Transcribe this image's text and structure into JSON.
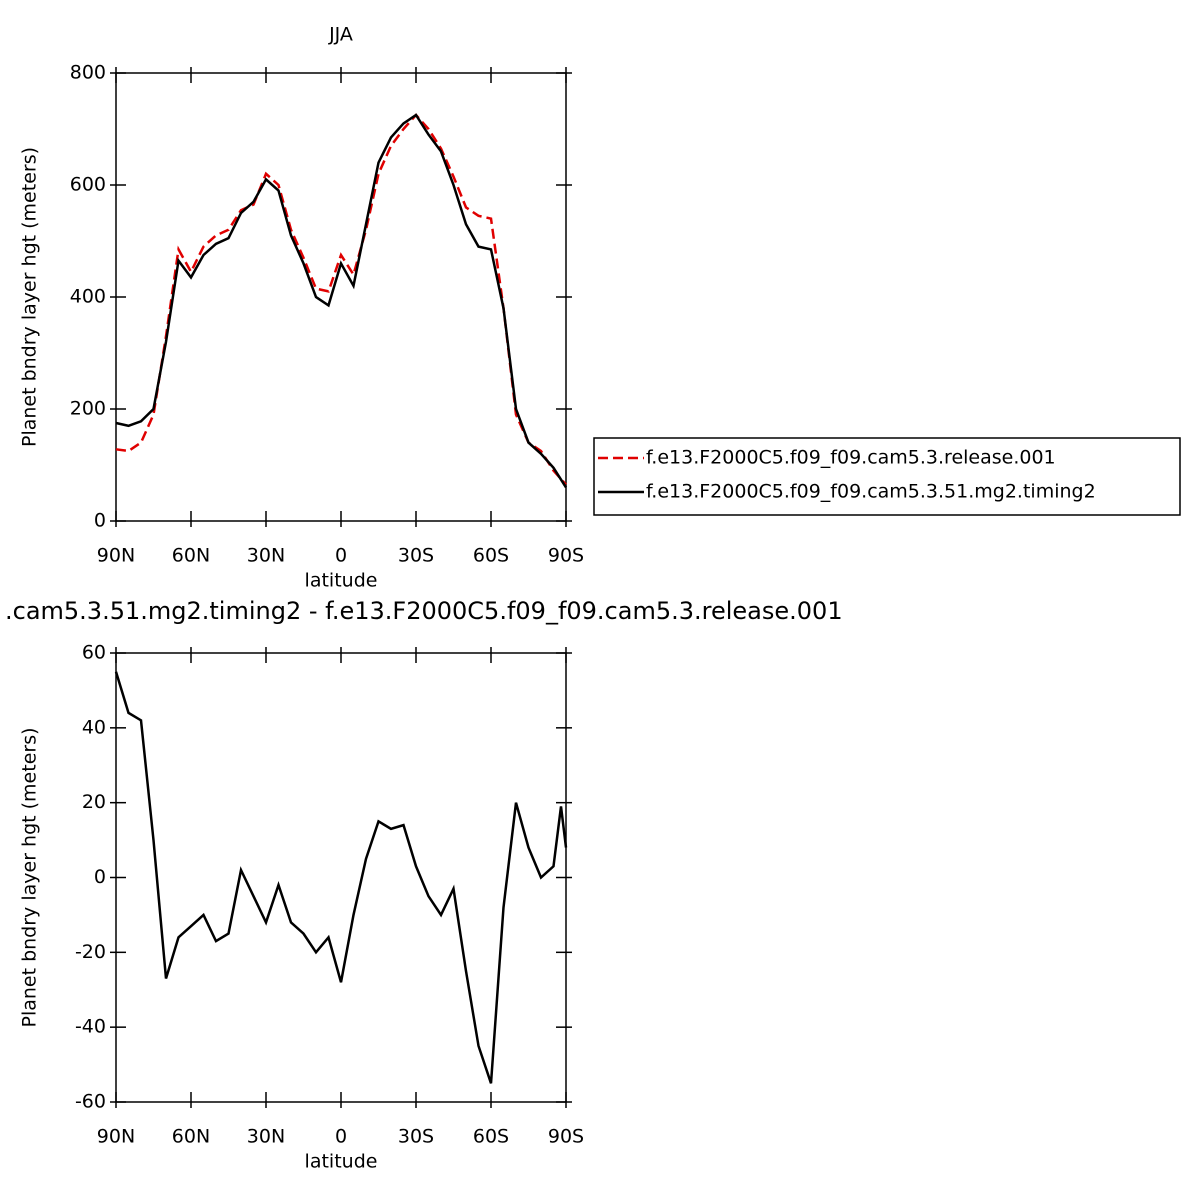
{
  "chart_data": [
    {
      "type": "line",
      "title": "JJA",
      "xlabel": "latitude",
      "ylabel": "Planet bndry layer hgt (meters)",
      "xlim": [
        90,
        -90
      ],
      "ylim": [
        0,
        800
      ],
      "xticks": [
        {
          "value": 90,
          "label": "90N"
        },
        {
          "value": 60,
          "label": "60N"
        },
        {
          "value": 30,
          "label": "30N"
        },
        0,
        {
          "value": -30,
          "label": "30S"
        },
        {
          "value": -60,
          "label": "60S"
        },
        {
          "value": -90,
          "label": "90S"
        }
      ],
      "yticks": [
        0,
        200,
        400,
        600,
        800
      ],
      "x": [
        90,
        85,
        80,
        75,
        70,
        65,
        60,
        55,
        50,
        45,
        40,
        35,
        30,
        25,
        20,
        15,
        10,
        5,
        0,
        -5,
        -10,
        -15,
        -20,
        -25,
        -30,
        -35,
        -40,
        -45,
        -50,
        -55,
        -60,
        -65,
        -70,
        -75,
        -80,
        -85,
        -90
      ],
      "legend": "right",
      "series": [
        {
          "name": "f.e13.F2000C5.f09_f09.cam5.3.release.001",
          "color": "#e00000",
          "dash": true,
          "values": [
            128,
            125,
            140,
            190,
            330,
            485,
            445,
            490,
            510,
            520,
            555,
            565,
            620,
            600,
            520,
            470,
            415,
            410,
            475,
            440,
            520,
            620,
            670,
            700,
            725,
            700,
            665,
            615,
            560,
            545,
            540,
            380,
            190,
            140,
            125,
            90,
            65
          ]
        },
        {
          "name": "f.e13.F2000C5.f09_f09.cam5.3.51.mg2.timing2",
          "color": "#000000",
          "dash": false,
          "values": [
            175,
            170,
            178,
            200,
            320,
            465,
            435,
            475,
            495,
            505,
            550,
            570,
            610,
            590,
            510,
            460,
            400,
            385,
            460,
            420,
            530,
            640,
            685,
            710,
            725,
            690,
            660,
            600,
            530,
            490,
            485,
            380,
            200,
            140,
            120,
            95,
            60
          ]
        }
      ]
    },
    {
      "type": "line",
      "title": ".cam5.3.51.mg2.timing2 - f.e13.F2000C5.f09_f09.cam5.3.release.001",
      "xlabel": "latitude",
      "ylabel": "Planet bndry layer hgt (meters)",
      "xlim": [
        90,
        -90
      ],
      "ylim": [
        -60,
        60
      ],
      "xticks": [
        {
          "value": 90,
          "label": "90N"
        },
        {
          "value": 60,
          "label": "60N"
        },
        {
          "value": 30,
          "label": "30N"
        },
        0,
        {
          "value": -30,
          "label": "30S"
        },
        {
          "value": -60,
          "label": "60S"
        },
        {
          "value": -90,
          "label": "90S"
        }
      ],
      "yticks": [
        -60,
        -40,
        -20,
        0,
        20,
        40,
        60
      ],
      "x": [
        90,
        85,
        80,
        75,
        70,
        65,
        60,
        55,
        50,
        45,
        40,
        35,
        30,
        25,
        20,
        15,
        10,
        5,
        0,
        -5,
        -10,
        -15,
        -20,
        -25,
        -30,
        -35,
        -40,
        -45,
        -50,
        -55,
        -60,
        -65,
        -70,
        -75,
        -80,
        -85,
        -88,
        -90
      ],
      "series": [
        {
          "color": "#000000",
          "dash": false,
          "values": [
            55,
            44,
            42,
            10,
            -27,
            -16,
            -13,
            -10,
            -17,
            -15,
            2,
            -5,
            -12,
            -2,
            -12,
            -15,
            -20,
            -16,
            -28,
            -10,
            5,
            15,
            13,
            14,
            3,
            -5,
            -10,
            -3,
            -25,
            -45,
            -55,
            -8,
            20,
            8,
            0,
            3,
            19,
            8
          ]
        }
      ]
    }
  ]
}
